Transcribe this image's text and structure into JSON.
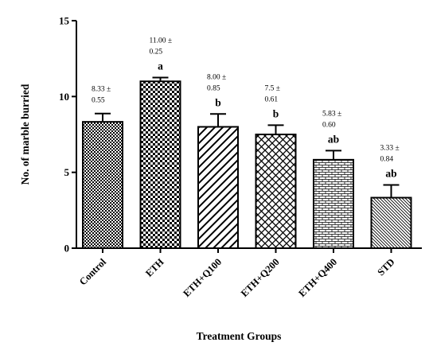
{
  "chart_data": {
    "type": "bar",
    "title": "",
    "xlabel": "Treatment Groups",
    "ylabel": "No. of marble burried",
    "ylim": [
      0,
      15
    ],
    "yticks": [
      0,
      5,
      10,
      15
    ],
    "grid": false,
    "categories": [
      "Control",
      "ETH",
      "ETH+Q100",
      "ETH+Q200",
      "ETH+Q400",
      "STD"
    ],
    "values": [
      8.33,
      11.0,
      8.0,
      7.5,
      5.83,
      3.33
    ],
    "errors": [
      0.55,
      0.25,
      0.85,
      0.61,
      0.6,
      0.84
    ],
    "mean_labels": [
      [
        "8.33 ±",
        "0.55"
      ],
      [
        "11.00 ±",
        "0.25"
      ],
      [
        "8.00 ±",
        "0.85"
      ],
      [
        "7.5 ±",
        "0.61"
      ],
      [
        "5.83 ±",
        "0.60"
      ],
      [
        "3.33 ±",
        "0.84"
      ]
    ],
    "significance": [
      "",
      "a",
      "b",
      "b",
      "ab",
      "ab"
    ],
    "patterns": [
      "checker",
      "bigchecker",
      "diagonal",
      "crosshatch",
      "brick",
      "fine-diagonal"
    ],
    "colors": {
      "bar_stroke": "#000000",
      "axis": "#000000",
      "background": "#ffffff"
    }
  }
}
